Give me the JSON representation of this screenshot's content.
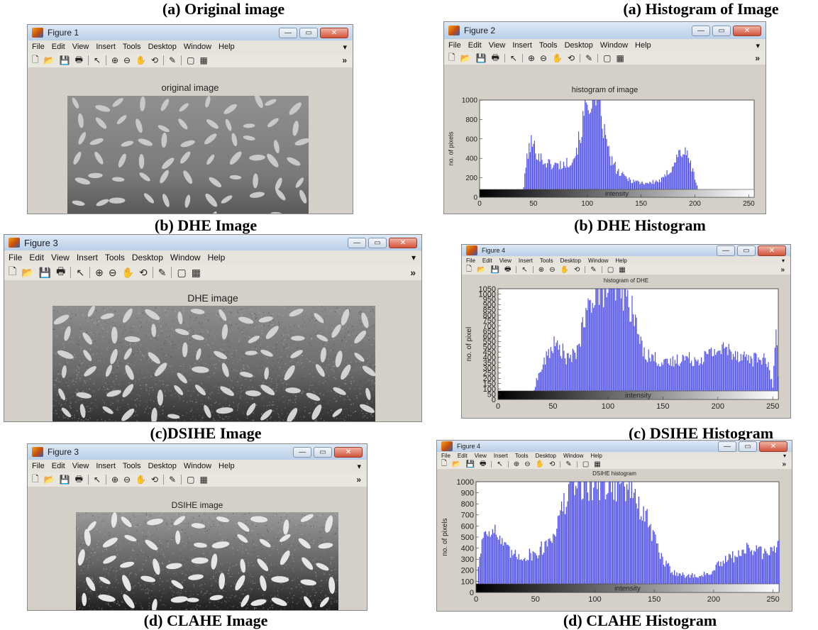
{
  "captions": {
    "a_image": "(a) Original image",
    "a_hist": "(a) Histogram of Image",
    "b_image": "(b) DHE Image",
    "b_hist": "(b) DHE Histogram",
    "c_image": "(c)DSIHE Image",
    "c_hist": "(c) DSIHE Histogram",
    "d_image": "(d) CLAHE Image",
    "d_hist": "(d) CLAHE Histogram"
  },
  "menu_items": [
    "File",
    "Edit",
    "View",
    "Insert",
    "Tools",
    "Desktop",
    "Window",
    "Help"
  ],
  "toolbar_icons": [
    "new-file-icon",
    "open-folder-icon",
    "save-icon",
    "print-icon",
    "pointer-icon",
    "zoom-in-icon",
    "zoom-out-icon",
    "pan-hand-icon",
    "rotate-3d-icon",
    "data-cursor-icon",
    "colorbar-icon",
    "legend-icon",
    "more-icon"
  ],
  "toolbar_glyphs": {
    "new": "🗋",
    "open": "📂",
    "save": "💾",
    "print": "🖶",
    "pointer": "↖",
    "zoomin": "⊕",
    "zoomout": "⊖",
    "pan": "✋",
    "rotate": "⟲",
    "cursor": "✎",
    "colorbar": "▢",
    "legend": "▦",
    "more": "»",
    "arrow": "▾"
  },
  "window_controls": {
    "minimize": "—",
    "maximize": "▭",
    "close": "✕"
  },
  "figures": {
    "fig_a_image": {
      "window_title": "Figure 1",
      "plot_title": "original image"
    },
    "fig_a_hist": {
      "window_title": "Figure 2",
      "plot_title": "histogram of image"
    },
    "fig_b_image": {
      "window_title": "Figure 3",
      "plot_title": "DHE image"
    },
    "fig_b_hist": {
      "window_title": "Figure 4",
      "plot_title": "histogram of DHE"
    },
    "fig_c_image": {
      "window_title": "Figure 3",
      "plot_title": "DSIHE image"
    },
    "fig_c_hist": {
      "window_title": "Figure 4",
      "plot_title": "DSIHE histogram"
    }
  },
  "chart_data": [
    {
      "type": "bar",
      "title": "histogram of image",
      "xlabel": "intensity",
      "ylabel": "no. of pixels",
      "xlim": [
        0,
        255
      ],
      "ylim": [
        0,
        1000
      ],
      "x_ticks": [
        0,
        50,
        100,
        150,
        200,
        250
      ],
      "y_ticks": [
        0,
        200,
        400,
        600,
        800,
        1000
      ],
      "color": "#2a2ae6",
      "x_range": [
        40,
        205
      ],
      "profile": [
        [
          40,
          0
        ],
        [
          44,
          420
        ],
        [
          48,
          560
        ],
        [
          52,
          490
        ],
        [
          58,
          380
        ],
        [
          65,
          340
        ],
        [
          72,
          330
        ],
        [
          80,
          340
        ],
        [
          88,
          420
        ],
        [
          94,
          650
        ],
        [
          98,
          900
        ],
        [
          102,
          1000
        ],
        [
          108,
          1000
        ],
        [
          112,
          900
        ],
        [
          116,
          650
        ],
        [
          122,
          380
        ],
        [
          130,
          240
        ],
        [
          140,
          180
        ],
        [
          150,
          150
        ],
        [
          160,
          150
        ],
        [
          170,
          180
        ],
        [
          178,
          300
        ],
        [
          185,
          450
        ],
        [
          190,
          470
        ],
        [
          195,
          380
        ],
        [
          200,
          200
        ],
        [
          205,
          0
        ]
      ]
    },
    {
      "type": "bar",
      "title": "histogram of DHE",
      "xlabel": "intensity",
      "ylabel": "no. of pixel",
      "xlim": [
        0,
        255
      ],
      "ylim": [
        0,
        1050
      ],
      "x_ticks": [
        0,
        50,
        100,
        150,
        200,
        250
      ],
      "y_ticks": [
        0,
        50,
        100,
        150,
        200,
        250,
        300,
        350,
        400,
        450,
        500,
        550,
        600,
        650,
        700,
        750,
        800,
        850,
        900,
        950,
        1000,
        1050
      ],
      "color": "#2a2ae6",
      "x_range": [
        30,
        255
      ],
      "profile": [
        [
          30,
          0
        ],
        [
          35,
          180
        ],
        [
          42,
          350
        ],
        [
          50,
          520
        ],
        [
          58,
          470
        ],
        [
          63,
          380
        ],
        [
          70,
          420
        ],
        [
          78,
          700
        ],
        [
          82,
          850
        ],
        [
          88,
          1050
        ],
        [
          100,
          1050
        ],
        [
          112,
          1050
        ],
        [
          118,
          950
        ],
        [
          124,
          780
        ],
        [
          130,
          520
        ],
        [
          136,
          420
        ],
        [
          145,
          380
        ],
        [
          152,
          330
        ],
        [
          160,
          360
        ],
        [
          168,
          400
        ],
        [
          176,
          380
        ],
        [
          184,
          390
        ],
        [
          192,
          430
        ],
        [
          200,
          470
        ],
        [
          208,
          480
        ],
        [
          216,
          440
        ],
        [
          224,
          410
        ],
        [
          232,
          380
        ],
        [
          240,
          400
        ],
        [
          246,
          320
        ],
        [
          250,
          120
        ],
        [
          253,
          680
        ],
        [
          255,
          200
        ]
      ]
    },
    {
      "type": "bar",
      "title": "DSIHE histogram",
      "xlabel": "intensity",
      "ylabel": "no. of pixels",
      "xlim": [
        0,
        255
      ],
      "ylim": [
        0,
        1000
      ],
      "x_ticks": [
        0,
        50,
        100,
        150,
        200,
        250
      ],
      "y_ticks": [
        0,
        100,
        200,
        300,
        400,
        500,
        600,
        700,
        800,
        900,
        1000
      ],
      "color": "#2a2ae6",
      "x_range": [
        2,
        255
      ],
      "profile": [
        [
          2,
          250
        ],
        [
          6,
          520
        ],
        [
          12,
          600
        ],
        [
          18,
          520
        ],
        [
          24,
          400
        ],
        [
          32,
          330
        ],
        [
          42,
          330
        ],
        [
          52,
          360
        ],
        [
          60,
          450
        ],
        [
          68,
          600
        ],
        [
          75,
          820
        ],
        [
          82,
          1000
        ],
        [
          90,
          1000
        ],
        [
          100,
          1000
        ],
        [
          112,
          1000
        ],
        [
          124,
          1000
        ],
        [
          132,
          920
        ],
        [
          138,
          760
        ],
        [
          146,
          600
        ],
        [
          152,
          430
        ],
        [
          158,
          270
        ],
        [
          166,
          190
        ],
        [
          176,
          150
        ],
        [
          186,
          150
        ],
        [
          196,
          170
        ],
        [
          206,
          260
        ],
        [
          216,
          320
        ],
        [
          226,
          390
        ],
        [
          236,
          380
        ],
        [
          246,
          330
        ],
        [
          255,
          460
        ]
      ]
    }
  ]
}
